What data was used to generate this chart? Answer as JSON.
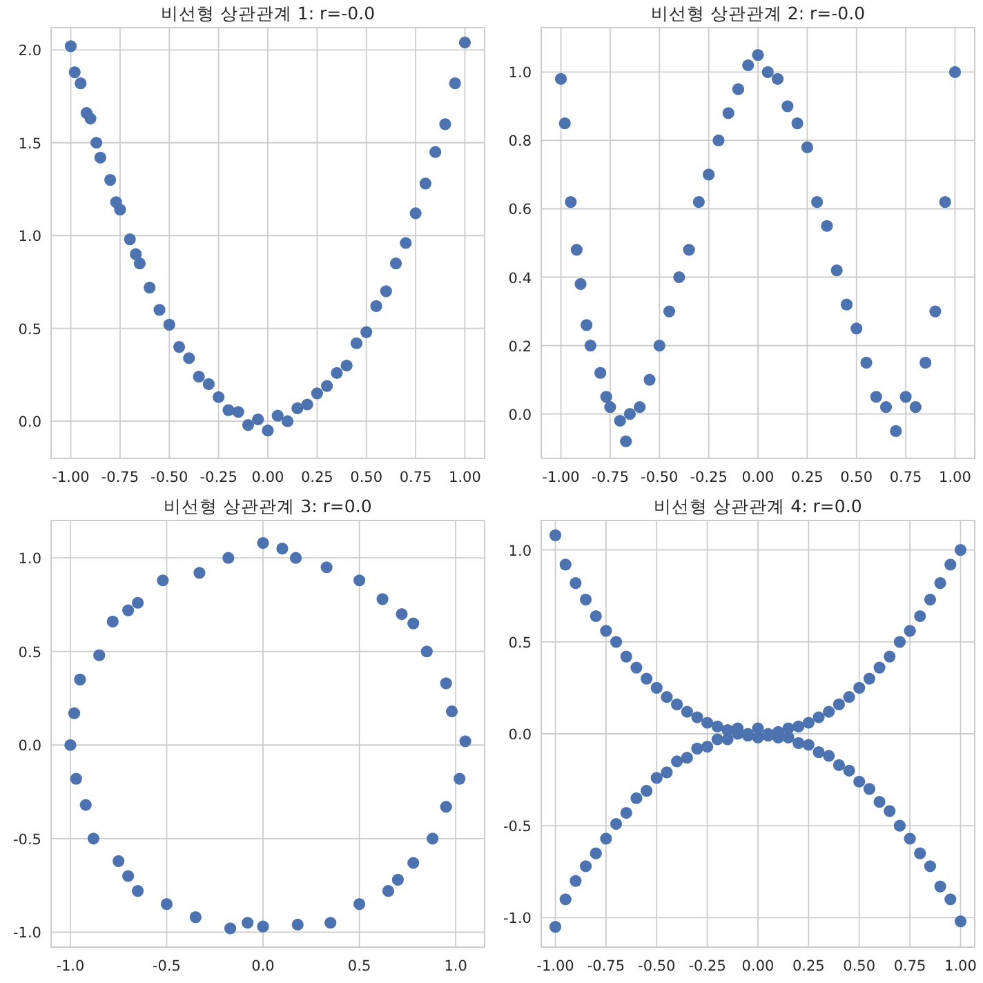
{
  "chart_data": [
    {
      "type": "scatter",
      "title": "비선형 상관관계 1: r=-0.0",
      "marker": "circle",
      "grid": true,
      "xlim": [
        -1.1,
        1.1
      ],
      "ylim": [
        -0.2,
        2.12
      ],
      "xticks": [
        {
          "value": -1,
          "label": "-1.00"
        },
        {
          "value": -0.75,
          "label": "-0.75"
        },
        {
          "value": -0.5,
          "label": "-0.50"
        },
        {
          "value": -0.25,
          "label": "-0.25"
        },
        {
          "value": 0,
          "label": "0.00"
        },
        {
          "value": 0.25,
          "label": "0.25"
        },
        {
          "value": 0.5,
          "label": "0.50"
        },
        {
          "value": 0.75,
          "label": "0.75"
        },
        {
          "value": 1,
          "label": "1.00"
        }
      ],
      "yticks": [
        {
          "value": 0,
          "label": "0.0"
        },
        0.5,
        {
          "value": 1,
          "label": "1.0"
        },
        1.5,
        {
          "value": 2,
          "label": "2.0"
        }
      ],
      "series": [
        {
          "color": "#4c72b0",
          "x": [
            -1,
            -0.98,
            -0.95,
            -0.92,
            -0.9,
            -0.87,
            -0.85,
            -0.8,
            -0.77,
            -0.75,
            -0.7,
            -0.67,
            -0.65,
            -0.6,
            -0.55,
            -0.5,
            -0.45,
            -0.4,
            -0.35,
            -0.3,
            -0.25,
            -0.2,
            -0.15,
            -0.1,
            -0.05,
            0,
            0.05,
            0.1,
            0.15,
            0.2,
            0.25,
            0.3,
            0.35,
            0.4,
            0.45,
            0.5,
            0.55,
            0.6,
            0.65,
            0.7,
            0.75,
            0.8,
            0.85,
            0.9,
            0.95,
            1
          ],
          "values": [
            2.02,
            1.88,
            1.82,
            1.66,
            1.63,
            1.5,
            1.42,
            1.3,
            1.18,
            1.14,
            0.98,
            0.9,
            0.85,
            0.72,
            0.6,
            0.52,
            0.4,
            0.34,
            0.24,
            0.2,
            0.13,
            0.06,
            0.05,
            -0.02,
            0.01,
            -0.05,
            0.03,
            0,
            0.07,
            0.09,
            0.15,
            0.19,
            0.26,
            0.3,
            0.42,
            0.48,
            0.62,
            0.7,
            0.85,
            0.96,
            1.12,
            1.28,
            1.45,
            1.6,
            1.82,
            2.04
          ]
        }
      ]
    },
    {
      "type": "scatter",
      "title": "비선형 상관관계 2: r=-0.0",
      "marker": "circle",
      "grid": true,
      "xlim": [
        -1.1,
        1.1
      ],
      "ylim": [
        -0.13,
        1.13
      ],
      "xticks": [
        {
          "value": -1,
          "label": "-1.00"
        },
        {
          "value": -0.75,
          "label": "-0.75"
        },
        {
          "value": -0.5,
          "label": "-0.50"
        },
        {
          "value": -0.25,
          "label": "-0.25"
        },
        {
          "value": 0,
          "label": "0.00"
        },
        {
          "value": 0.25,
          "label": "0.25"
        },
        {
          "value": 0.5,
          "label": "0.50"
        },
        {
          "value": 0.75,
          "label": "0.75"
        },
        {
          "value": 1,
          "label": "1.00"
        }
      ],
      "yticks": [
        {
          "value": 0,
          "label": "0.0"
        },
        0.2,
        0.4,
        0.6,
        0.8,
        {
          "value": 1,
          "label": "1.0"
        }
      ],
      "series": [
        {
          "color": "#4c72b0",
          "x": [
            -1,
            -0.98,
            -0.95,
            -0.92,
            -0.9,
            -0.87,
            -0.85,
            -0.8,
            -0.77,
            -0.75,
            -0.7,
            -0.67,
            -0.65,
            -0.6,
            -0.55,
            -0.5,
            -0.45,
            -0.4,
            -0.35,
            -0.3,
            -0.25,
            -0.2,
            -0.15,
            -0.1,
            -0.05,
            0,
            0.05,
            0.1,
            0.15,
            0.2,
            0.25,
            0.3,
            0.35,
            0.4,
            0.45,
            0.5,
            0.55,
            0.6,
            0.65,
            0.7,
            0.75,
            0.8,
            0.85,
            0.9,
            0.95,
            1
          ],
          "values": [
            0.98,
            0.85,
            0.62,
            0.48,
            0.38,
            0.26,
            0.2,
            0.12,
            0.05,
            0.02,
            -0.02,
            -0.08,
            0,
            0.02,
            0.1,
            0.2,
            0.3,
            0.4,
            0.48,
            0.62,
            0.7,
            0.8,
            0.88,
            0.95,
            1.02,
            1.05,
            1,
            0.98,
            0.9,
            0.85,
            0.78,
            0.62,
            0.55,
            0.42,
            0.32,
            0.25,
            0.15,
            0.05,
            0.02,
            -0.05,
            0.05,
            0.02,
            0.15,
            0.3,
            0.62,
            1
          ]
        }
      ]
    },
    {
      "type": "scatter",
      "title": "비선형 상관관계 3: r=0.0",
      "marker": "circle",
      "grid": true,
      "xlim": [
        -1.1,
        1.15
      ],
      "ylim": [
        -1.08,
        1.2
      ],
      "xticks": [
        {
          "value": -1,
          "label": "-1.0"
        },
        -0.5,
        {
          "value": 0,
          "label": "0.0"
        },
        0.5,
        {
          "value": 1,
          "label": "1.0"
        }
      ],
      "yticks": [
        {
          "value": -1,
          "label": "-1.0"
        },
        -0.5,
        {
          "value": 0,
          "label": "0.0"
        },
        0.5,
        {
          "value": 1,
          "label": "1.0"
        }
      ],
      "series": [
        {
          "color": "#4c72b0",
          "x": [
            1.05,
            0.98,
            0.95,
            0.85,
            0.78,
            0.72,
            0.62,
            0.5,
            0.33,
            0.17,
            0.1,
            0,
            -0.18,
            -0.33,
            -0.52,
            -0.65,
            -0.7,
            -0.78,
            -0.85,
            -0.95,
            -0.98,
            -1,
            -0.97,
            -0.92,
            -0.88,
            -0.75,
            -0.7,
            -0.65,
            -0.5,
            -0.35,
            -0.17,
            -0.08,
            0,
            0.18,
            0.35,
            0.5,
            0.65,
            0.7,
            0.78,
            0.88,
            0.95,
            1.02
          ],
          "values": [
            0.02,
            0.18,
            0.33,
            0.5,
            0.65,
            0.7,
            0.78,
            0.88,
            0.95,
            1,
            1.05,
            1.08,
            1,
            0.92,
            0.88,
            0.76,
            0.72,
            0.66,
            0.48,
            0.35,
            0.17,
            0,
            -0.18,
            -0.32,
            -0.5,
            -0.62,
            -0.7,
            -0.78,
            -0.85,
            -0.92,
            -0.98,
            -0.95,
            -0.97,
            -0.96,
            -0.95,
            -0.85,
            -0.78,
            -0.72,
            -0.63,
            -0.5,
            -0.33,
            -0.18
          ]
        }
      ]
    },
    {
      "type": "scatter",
      "title": "비선형 상관관계 4: r=0.0",
      "marker": "circle",
      "grid": true,
      "xlim": [
        -1.07,
        1.07
      ],
      "ylim": [
        -1.16,
        1.16
      ],
      "xticks": [
        {
          "value": -1,
          "label": "-1.00"
        },
        {
          "value": -0.75,
          "label": "-0.75"
        },
        {
          "value": -0.5,
          "label": "-0.50"
        },
        {
          "value": -0.25,
          "label": "-0.25"
        },
        {
          "value": 0,
          "label": "0.00"
        },
        {
          "value": 0.25,
          "label": "0.25"
        },
        {
          "value": 0.5,
          "label": "0.50"
        },
        {
          "value": 0.75,
          "label": "0.75"
        },
        {
          "value": 1,
          "label": "1.00"
        }
      ],
      "yticks": [
        {
          "value": -1,
          "label": "-1.0"
        },
        -0.5,
        {
          "value": 0,
          "label": "0.0"
        },
        0.5,
        {
          "value": 1,
          "label": "1.0"
        }
      ],
      "series": [
        {
          "color": "#4c72b0",
          "x": [
            -1,
            -0.95,
            -0.9,
            -0.85,
            -0.8,
            -0.75,
            -0.7,
            -0.65,
            -0.6,
            -0.55,
            -0.5,
            -0.45,
            -0.4,
            -0.35,
            -0.3,
            -0.25,
            -0.2,
            -0.15,
            -0.1,
            -0.05,
            0,
            0.05,
            0.1,
            0.15,
            0.2,
            0.25,
            0.3,
            0.35,
            0.4,
            0.45,
            0.5,
            0.55,
            0.6,
            0.65,
            0.7,
            0.75,
            0.8,
            0.85,
            0.9,
            0.95,
            1
          ],
          "values": [
            1.08,
            0.92,
            0.82,
            0.73,
            0.64,
            0.56,
            0.5,
            0.42,
            0.36,
            0.3,
            0.25,
            0.2,
            0.16,
            0.12,
            0.09,
            0.06,
            0.04,
            0.02,
            0.03,
            0,
            0.03,
            0,
            0.01,
            0.03,
            0.04,
            0.06,
            0.09,
            0.12,
            0.16,
            0.2,
            0.25,
            0.3,
            0.36,
            0.42,
            0.5,
            0.56,
            0.64,
            0.73,
            0.82,
            0.92,
            1
          ]
        },
        {
          "color": "#4c72b0",
          "x": [
            -1,
            -0.95,
            -0.9,
            -0.85,
            -0.8,
            -0.75,
            -0.7,
            -0.65,
            -0.6,
            -0.55,
            -0.5,
            -0.45,
            -0.4,
            -0.35,
            -0.3,
            -0.25,
            -0.2,
            -0.15,
            -0.1,
            -0.05,
            0,
            0.05,
            0.1,
            0.15,
            0.2,
            0.25,
            0.3,
            0.35,
            0.4,
            0.45,
            0.5,
            0.55,
            0.6,
            0.65,
            0.7,
            0.75,
            0.8,
            0.85,
            0.9,
            0.95,
            1
          ],
          "values": [
            -1.05,
            -0.9,
            -0.8,
            -0.72,
            -0.65,
            -0.57,
            -0.49,
            -0.43,
            -0.35,
            -0.31,
            -0.24,
            -0.21,
            -0.15,
            -0.13,
            -0.08,
            -0.07,
            -0.03,
            -0.03,
            0,
            -0.01,
            -0.02,
            -0.01,
            -0.02,
            -0.02,
            -0.05,
            -0.06,
            -0.1,
            -0.12,
            -0.17,
            -0.2,
            -0.26,
            -0.3,
            -0.37,
            -0.42,
            -0.5,
            -0.57,
            -0.65,
            -0.72,
            -0.83,
            -0.9,
            -1.02
          ]
        }
      ]
    }
  ]
}
